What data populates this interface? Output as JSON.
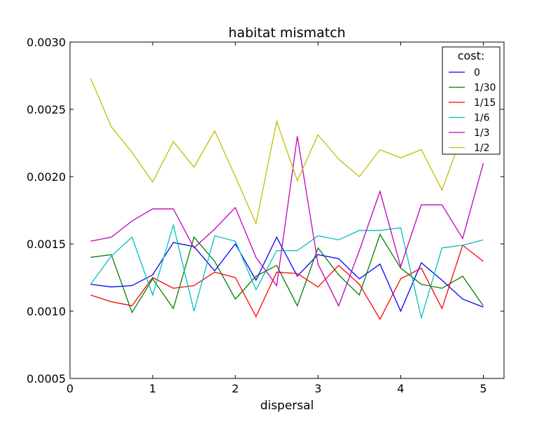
{
  "chart_data": {
    "type": "line",
    "title": "habitat mismatch",
    "xlabel": "dispersal",
    "ylabel": "",
    "xlim": [
      0,
      5.25
    ],
    "ylim": [
      0.0005,
      0.003
    ],
    "x_ticks": [
      0,
      1,
      2,
      3,
      4,
      5
    ],
    "x_tick_labels": [
      "0",
      "1",
      "2",
      "3",
      "4",
      "5"
    ],
    "y_ticks": [
      0.0005,
      0.001,
      0.0015,
      0.002,
      0.0025,
      0.003
    ],
    "y_tick_labels": [
      "0.0005",
      "0.0010",
      "0.0015",
      "0.0020",
      "0.0025",
      "0.0030"
    ],
    "grid": false,
    "legend": {
      "title": "cost:",
      "placement": "top-right"
    },
    "x": [
      0.25,
      0.5,
      0.75,
      1.0,
      1.25,
      1.5,
      1.75,
      2.0,
      2.25,
      2.5,
      2.75,
      3.0,
      3.25,
      3.5,
      3.75,
      4.0,
      4.25,
      4.5,
      4.75,
      5.0
    ],
    "series": [
      {
        "name": "0",
        "color": "#0000ff",
        "values": [
          0.0012,
          0.00118,
          0.00119,
          0.00127,
          0.00151,
          0.00148,
          0.0013,
          0.0015,
          0.00123,
          0.00155,
          0.00126,
          0.00142,
          0.00139,
          0.00124,
          0.00135,
          0.001,
          0.00136,
          0.00123,
          0.00109,
          0.00103
        ]
      },
      {
        "name": "1/30",
        "color": "#008000",
        "values": [
          0.0014,
          0.00142,
          0.00099,
          0.00124,
          0.00102,
          0.00155,
          0.00137,
          0.00109,
          0.00126,
          0.00134,
          0.00104,
          0.00147,
          0.00127,
          0.00112,
          0.00157,
          0.00132,
          0.0012,
          0.00117,
          0.00126,
          0.00104
        ]
      },
      {
        "name": "1/15",
        "color": "#ff0000",
        "values": [
          0.00112,
          0.00107,
          0.00104,
          0.00125,
          0.00117,
          0.00119,
          0.00129,
          0.00125,
          0.00096,
          0.00129,
          0.00128,
          0.00118,
          0.00134,
          0.0012,
          0.00094,
          0.00124,
          0.00132,
          0.00102,
          0.00149,
          0.00137
        ]
      },
      {
        "name": "1/6",
        "color": "#00bfbf",
        "values": [
          0.0012,
          0.00141,
          0.00155,
          0.00112,
          0.00164,
          0.001,
          0.00156,
          0.00152,
          0.00116,
          0.00145,
          0.00145,
          0.00156,
          0.00153,
          0.0016,
          0.0016,
          0.00162,
          0.00095,
          0.00147,
          0.00149,
          0.00153
        ]
      },
      {
        "name": "1/3",
        "color": "#bf00bf",
        "values": [
          0.00152,
          0.00155,
          0.00167,
          0.00176,
          0.00176,
          0.00147,
          0.00161,
          0.00177,
          0.0014,
          0.00119,
          0.0023,
          0.00135,
          0.00104,
          0.00145,
          0.00189,
          0.00133,
          0.00179,
          0.00179,
          0.00154,
          0.0021
        ]
      },
      {
        "name": "1/2",
        "color": "#bfbf00",
        "values": [
          0.00273,
          0.00237,
          0.00218,
          0.00196,
          0.00226,
          0.00207,
          0.00234,
          0.002,
          0.00165,
          0.00241,
          0.00197,
          0.00231,
          0.00213,
          0.002,
          0.0022,
          0.00214,
          0.0022,
          0.0019,
          0.00232,
          0.00243
        ]
      }
    ]
  }
}
